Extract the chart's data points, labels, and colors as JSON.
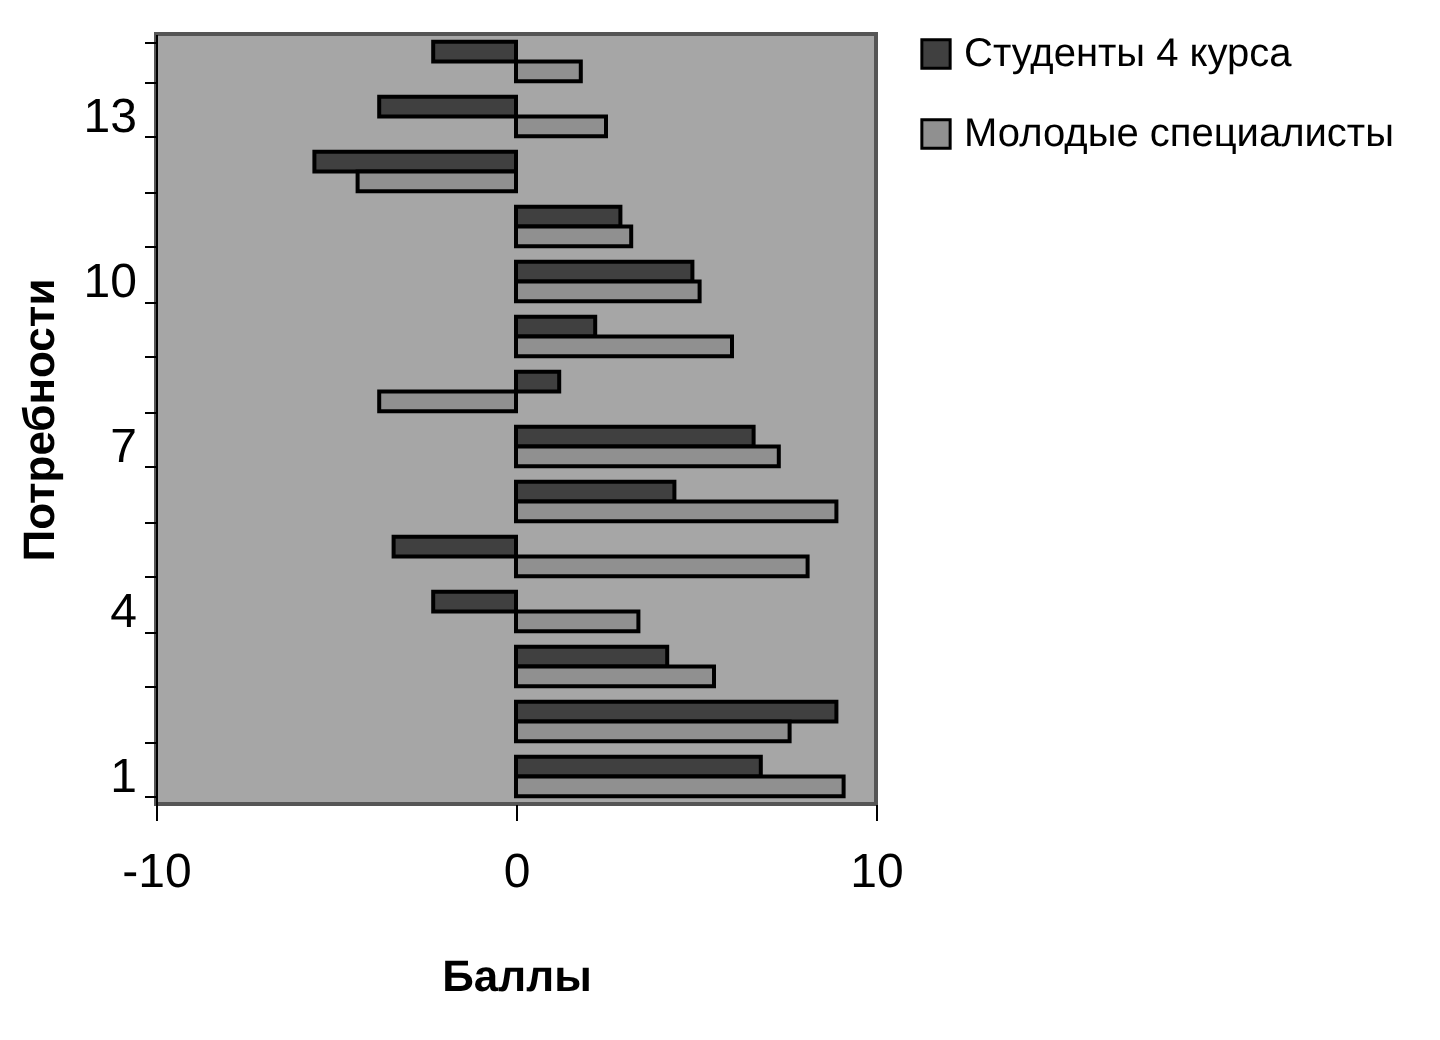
{
  "chart_data": {
    "type": "bar",
    "orientation": "horizontal",
    "xlabel": "Баллы",
    "ylabel": "Потребности",
    "categories": [
      null,
      "13",
      null,
      null,
      "10",
      null,
      null,
      "7",
      null,
      null,
      "4",
      null,
      null,
      "1"
    ],
    "series": [
      {
        "name": "Студенты 4 курса",
        "color": "#404040",
        "values": [
          -2.3,
          -3.8,
          -5.6,
          2.9,
          4.9,
          2.2,
          1.2,
          6.6,
          4.4,
          -3.4,
          -2.3,
          4.2,
          8.9,
          6.8
        ]
      },
      {
        "name": "Молодые специалисты",
        "color": "#909090",
        "values": [
          1.8,
          2.5,
          -4.4,
          3.2,
          5.1,
          6.0,
          -3.8,
          7.3,
          8.9,
          8.1,
          3.4,
          5.5,
          7.6,
          9.1
        ]
      }
    ],
    "xlim": [
      -10,
      10
    ],
    "xticks": [
      -10,
      0,
      10
    ],
    "grid": false,
    "legend": "right"
  }
}
